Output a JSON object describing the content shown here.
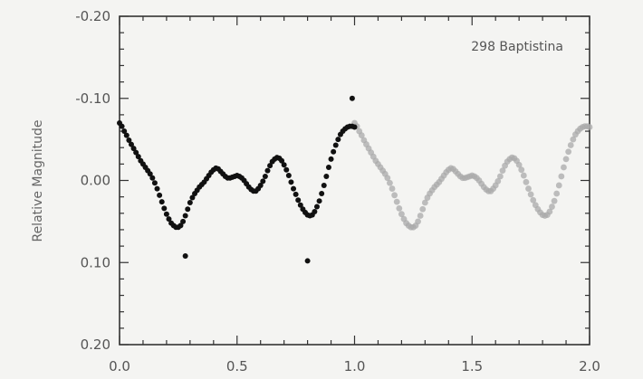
{
  "chart_data": {
    "type": "scatter",
    "title": "",
    "annotation": "298 Baptistina",
    "xlabel": "",
    "ylabel": "Relative Magnitude",
    "xlim": [
      0.0,
      2.0
    ],
    "ylim": [
      0.2,
      -0.2
    ],
    "y_inverted": true,
    "grid": false,
    "x_ticks": [
      "0.0",
      "0.5",
      "1.0",
      "1.5",
      "2.0"
    ],
    "y_ticks": [
      "-0.20",
      "-0.10",
      "0.00",
      "0.10",
      "0.20"
    ],
    "x_tick_values": [
      0.0,
      0.5,
      1.0,
      1.5,
      2.0
    ],
    "y_tick_values": [
      -0.2,
      -0.1,
      0.0,
      0.1,
      0.2
    ],
    "series": [
      {
        "color": "#111111",
        "x": [
          0.0,
          0.01,
          0.02,
          0.03,
          0.04,
          0.05,
          0.06,
          0.07,
          0.08,
          0.09,
          0.1,
          0.11,
          0.12,
          0.13,
          0.14,
          0.15,
          0.16,
          0.17,
          0.18,
          0.19,
          0.2,
          0.21,
          0.22,
          0.23,
          0.24,
          0.25,
          0.26,
          0.27,
          0.28,
          0.29,
          0.3,
          0.31,
          0.32,
          0.33,
          0.34,
          0.35,
          0.36,
          0.37,
          0.38,
          0.39,
          0.4,
          0.41,
          0.42,
          0.43,
          0.44,
          0.45,
          0.46,
          0.47,
          0.48,
          0.49,
          0.5,
          0.51,
          0.52,
          0.53,
          0.54,
          0.55,
          0.56,
          0.57,
          0.58,
          0.59,
          0.6,
          0.61,
          0.62,
          0.63,
          0.64,
          0.65,
          0.66,
          0.67,
          0.68,
          0.69,
          0.7,
          0.71,
          0.72,
          0.73,
          0.74,
          0.75,
          0.76,
          0.77,
          0.78,
          0.79,
          0.8,
          0.81,
          0.82,
          0.83,
          0.84,
          0.85,
          0.86,
          0.87,
          0.88,
          0.89,
          0.9,
          0.91,
          0.92,
          0.93,
          0.94,
          0.95,
          0.96,
          0.97,
          0.98,
          0.99,
          1.0,
          0.28,
          0.8,
          0.99
        ],
        "y": [
          -0.07,
          -0.066,
          -0.06,
          -0.055,
          -0.049,
          -0.044,
          -0.039,
          -0.034,
          -0.029,
          -0.024,
          -0.02,
          -0.016,
          -0.012,
          -0.008,
          -0.003,
          0.003,
          0.01,
          0.018,
          0.026,
          0.034,
          0.041,
          0.047,
          0.052,
          0.055,
          0.057,
          0.057,
          0.055,
          0.05,
          0.043,
          0.035,
          0.027,
          0.021,
          0.016,
          0.012,
          0.008,
          0.005,
          0.002,
          -0.002,
          -0.006,
          -0.01,
          -0.013,
          -0.015,
          -0.014,
          -0.011,
          -0.008,
          -0.005,
          -0.003,
          -0.003,
          -0.004,
          -0.005,
          -0.006,
          -0.005,
          -0.003,
          0.0,
          0.004,
          0.008,
          0.011,
          0.013,
          0.013,
          0.01,
          0.006,
          0.001,
          -0.005,
          -0.012,
          -0.018,
          -0.023,
          -0.026,
          -0.028,
          -0.027,
          -0.024,
          -0.019,
          -0.013,
          -0.006,
          0.002,
          0.01,
          0.017,
          0.024,
          0.03,
          0.035,
          0.039,
          0.042,
          0.043,
          0.042,
          0.038,
          0.032,
          0.025,
          0.016,
          0.006,
          -0.005,
          -0.016,
          -0.026,
          -0.035,
          -0.043,
          -0.05,
          -0.056,
          -0.06,
          -0.063,
          -0.065,
          -0.066,
          -0.066,
          -0.065,
          0.092,
          0.098,
          -0.1
        ]
      },
      {
        "color": "#aaaaaa",
        "x": [
          1.0,
          1.01,
          1.02,
          1.03,
          1.04,
          1.05,
          1.06,
          1.07,
          1.08,
          1.09,
          1.1,
          1.11,
          1.12,
          1.13,
          1.14,
          1.15,
          1.16,
          1.17,
          1.18,
          1.19,
          1.2,
          1.21,
          1.22,
          1.23,
          1.24,
          1.25,
          1.26,
          1.27,
          1.28,
          1.29,
          1.3,
          1.31,
          1.32,
          1.33,
          1.34,
          1.35,
          1.36,
          1.37,
          1.38,
          1.39,
          1.4,
          1.41,
          1.42,
          1.43,
          1.44,
          1.45,
          1.46,
          1.47,
          1.48,
          1.49,
          1.5,
          1.51,
          1.52,
          1.53,
          1.54,
          1.55,
          1.56,
          1.57,
          1.58,
          1.59,
          1.6,
          1.61,
          1.62,
          1.63,
          1.64,
          1.65,
          1.66,
          1.67,
          1.68,
          1.69,
          1.7,
          1.71,
          1.72,
          1.73,
          1.74,
          1.75,
          1.76,
          1.77,
          1.78,
          1.79,
          1.8,
          1.81,
          1.82,
          1.83,
          1.84,
          1.85,
          1.86,
          1.87,
          1.88,
          1.89,
          1.9,
          1.91,
          1.92,
          1.93,
          1.94,
          1.95,
          1.96,
          1.97,
          1.98,
          1.99,
          2.0
        ],
        "y": [
          -0.07,
          -0.066,
          -0.06,
          -0.055,
          -0.049,
          -0.044,
          -0.039,
          -0.034,
          -0.029,
          -0.024,
          -0.02,
          -0.016,
          -0.012,
          -0.008,
          -0.003,
          0.003,
          0.01,
          0.018,
          0.026,
          0.034,
          0.041,
          0.047,
          0.052,
          0.055,
          0.057,
          0.057,
          0.055,
          0.05,
          0.043,
          0.035,
          0.027,
          0.021,
          0.016,
          0.012,
          0.008,
          0.005,
          0.002,
          -0.002,
          -0.006,
          -0.01,
          -0.013,
          -0.015,
          -0.014,
          -0.011,
          -0.008,
          -0.005,
          -0.003,
          -0.003,
          -0.004,
          -0.005,
          -0.006,
          -0.005,
          -0.003,
          0.0,
          0.004,
          0.008,
          0.011,
          0.013,
          0.013,
          0.01,
          0.006,
          0.001,
          -0.005,
          -0.012,
          -0.018,
          -0.023,
          -0.026,
          -0.028,
          -0.027,
          -0.024,
          -0.019,
          -0.013,
          -0.006,
          0.002,
          0.01,
          0.017,
          0.024,
          0.03,
          0.035,
          0.039,
          0.042,
          0.043,
          0.042,
          0.038,
          0.032,
          0.025,
          0.016,
          0.006,
          -0.005,
          -0.016,
          -0.026,
          -0.035,
          -0.043,
          -0.05,
          -0.056,
          -0.06,
          -0.063,
          -0.065,
          -0.066,
          -0.066,
          -0.065
        ]
      }
    ]
  }
}
